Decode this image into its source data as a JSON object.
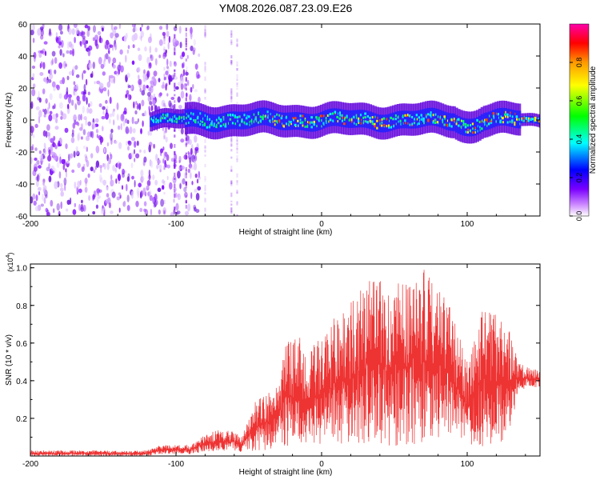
{
  "page_title": "YM08.2026.087.23.09.E26",
  "chart_data": [
    {
      "type": "heatmap",
      "title": "YM08.2026.087.23.09.E26",
      "xlabel": "Height of straight line (km)",
      "ylabel": "Frequency (Hz)",
      "xlim": [
        -200,
        150
      ],
      "ylim": [
        -60,
        60
      ],
      "xticks": [
        -200,
        -100,
        0,
        100
      ],
      "xtick_labels": [
        "-200",
        "-100",
        "0",
        "100"
      ],
      "yticks": [
        -60,
        -40,
        -20,
        0,
        20,
        40,
        60
      ],
      "ytick_labels": [
        "-60",
        "-40",
        "-20",
        "0",
        "20",
        "40",
        "60"
      ],
      "noise_region_km": [
        -200,
        -90
      ],
      "signal_band_center_hz": 0,
      "colorbar": {
        "label": "Normalized spectral amplitude",
        "range": [
          0,
          1
        ],
        "ticks": [
          0.0,
          0.2,
          0.4,
          0.6,
          0.8
        ],
        "tick_labels": [
          "0.0",
          "0.2",
          "0.4",
          "0.6",
          "0.8"
        ],
        "colors": [
          "#ffffff",
          "#cc88ff",
          "#7a00ff",
          "#0000ff",
          "#00ffff",
          "#00ff00",
          "#ffff00",
          "#ff9900",
          "#ff0000",
          "#ff00aa"
        ]
      }
    },
    {
      "type": "line",
      "xlabel": "Height of straight line (km)",
      "ylabel": "SNR (10 * v/v)",
      "scale_label": "(x10",
      "scale_exp": "4",
      "xlim": [
        -200,
        150
      ],
      "ylim": [
        0,
        1.02
      ],
      "xticks": [
        -200,
        -100,
        0,
        100
      ],
      "xtick_labels": [
        "-200",
        "-100",
        "0",
        "100"
      ],
      "yticks": [
        0.2,
        0.4,
        0.6,
        0.8,
        1.0
      ],
      "ytick_labels": [
        "0.2",
        "0.4",
        "0.6",
        "0.8",
        "1.0"
      ],
      "line_color": "#ee3333",
      "envelope": {
        "x": [
          -200,
          -120,
          -110,
          -90,
          -80,
          -70,
          -60,
          -55,
          -45,
          -40,
          -30,
          -25,
          -15,
          -10,
          0,
          10,
          20,
          30,
          40,
          50,
          60,
          70,
          80,
          85,
          95,
          100,
          110,
          120,
          128,
          135,
          150
        ],
        "upper": [
          0.03,
          0.03,
          0.06,
          0.06,
          0.12,
          0.14,
          0.13,
          0.1,
          0.3,
          0.32,
          0.4,
          0.6,
          0.63,
          0.55,
          0.65,
          0.75,
          0.82,
          0.95,
          0.93,
          0.92,
          0.97,
          1.0,
          0.9,
          0.85,
          0.65,
          0.5,
          0.78,
          0.75,
          0.7,
          0.5,
          0.45
        ],
        "lower": [
          0.0,
          0.0,
          0.01,
          0.01,
          0.02,
          0.02,
          0.03,
          0.02,
          0.03,
          0.03,
          0.04,
          0.05,
          0.06,
          0.05,
          0.06,
          0.06,
          0.05,
          0.06,
          0.06,
          0.05,
          0.06,
          0.07,
          0.08,
          0.1,
          0.07,
          0.05,
          0.05,
          0.06,
          0.06,
          0.35,
          0.36
        ]
      }
    }
  ]
}
